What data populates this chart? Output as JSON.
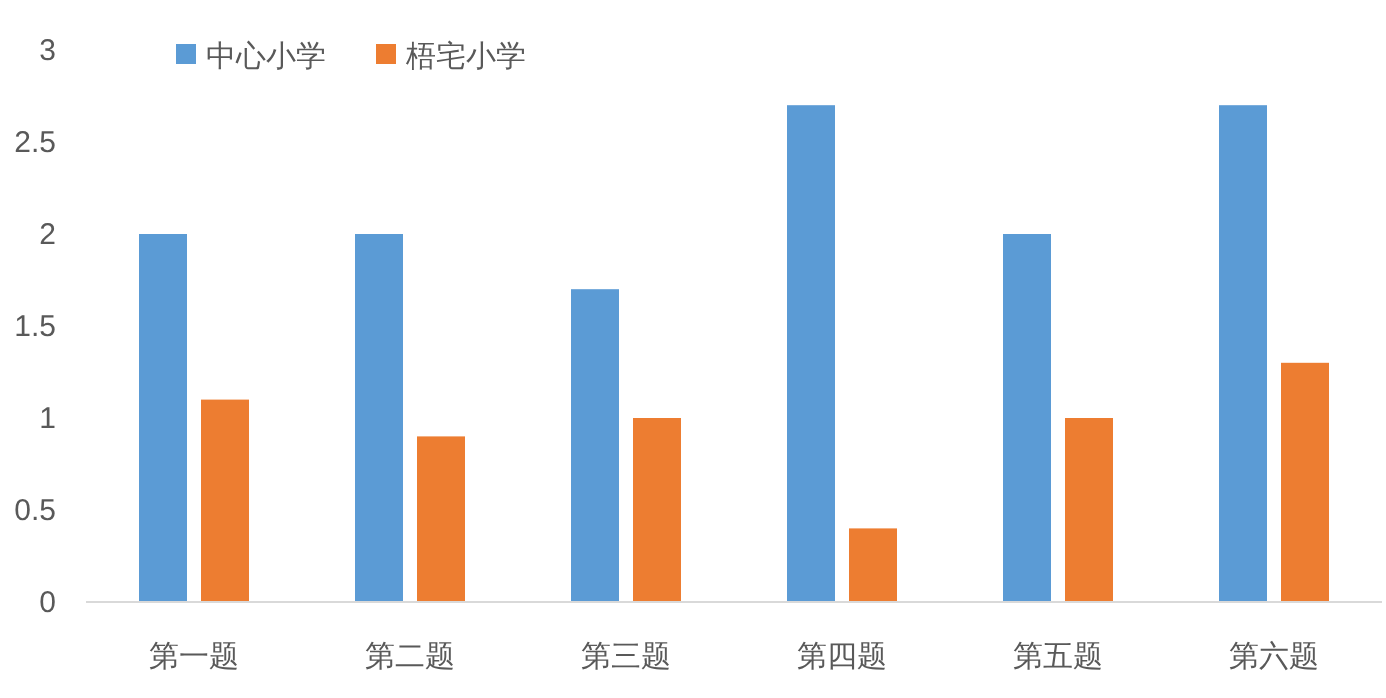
{
  "chart_data": {
    "type": "bar",
    "categories": [
      "第一题",
      "第二题",
      "第三题",
      "第四题",
      "第五题",
      "第六题"
    ],
    "series": [
      {
        "name": "中心小学",
        "color": "#5b9bd5",
        "values": [
          2,
          2,
          1.7,
          2.7,
          2,
          2.7
        ]
      },
      {
        "name": "梧宅小学",
        "color": "#ed7d31",
        "values": [
          1.1,
          0.9,
          1,
          0.4,
          1,
          1.3
        ]
      }
    ],
    "ylim": [
      0,
      3
    ],
    "yticks": [
      0,
      0.5,
      1,
      1.5,
      2,
      2.5,
      3
    ],
    "grid": false,
    "legend": "top left"
  }
}
